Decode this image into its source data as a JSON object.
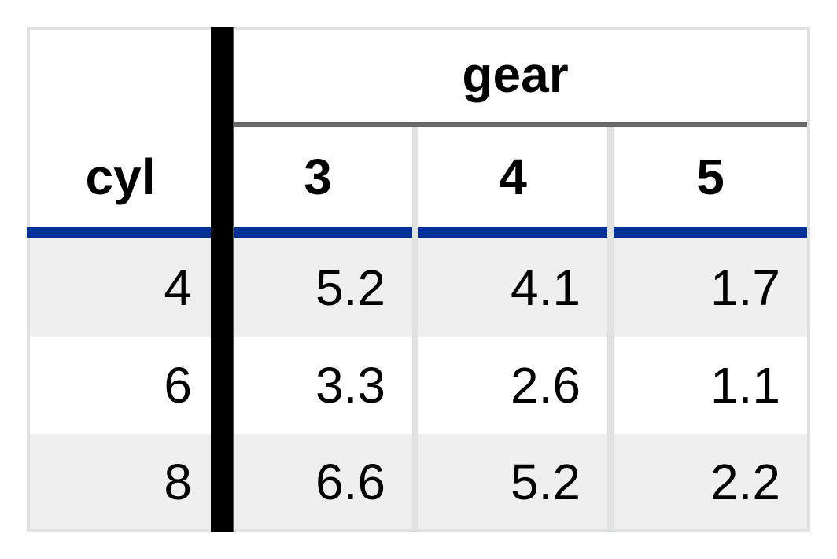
{
  "table": {
    "stub_header": "cyl",
    "spanner": "gear",
    "columns": [
      "3",
      "4",
      "5"
    ],
    "rows": [
      {
        "label": "4",
        "values": [
          "5.2",
          "4.1",
          "1.7"
        ]
      },
      {
        "label": "6",
        "values": [
          "3.3",
          "2.6",
          "1.1"
        ]
      },
      {
        "label": "8",
        "values": [
          "6.6",
          "5.2",
          "2.2"
        ]
      }
    ]
  },
  "colors": {
    "border": "#dfe1e2",
    "header_rule": "#003399",
    "spanner_rule": "#6a6a6a",
    "stripe": "#efefef",
    "stub_rule": "#000000"
  }
}
